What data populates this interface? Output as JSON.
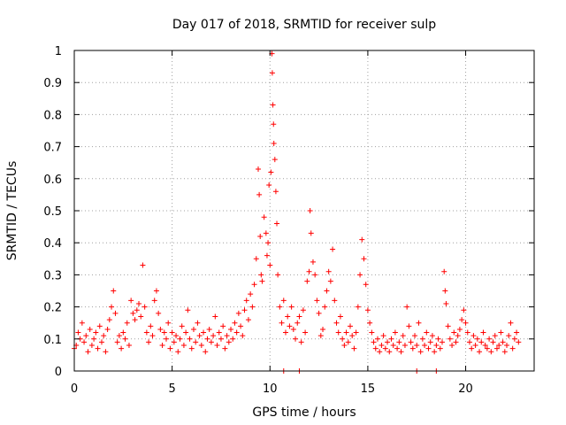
{
  "chart_data": {
    "type": "scatter",
    "title": "Day 017 of 2018, SRMTID for receiver sulp",
    "xlabel": "GPS time / hours",
    "ylabel": "SRMTID / TECUs",
    "xlim": [
      0,
      23.5
    ],
    "ylim": [
      0,
      1
    ],
    "xticks": [
      0,
      5,
      10,
      15,
      20
    ],
    "xtick_labels": [
      "0",
      "5",
      "10",
      "15",
      "20"
    ],
    "yticks": [
      0,
      0.1,
      0.2,
      0.3,
      0.4,
      0.5,
      0.6,
      0.7,
      0.8,
      0.9,
      1
    ],
    "ytick_labels": [
      "0",
      "0.1",
      "0.2",
      "0.3",
      "0.4",
      "0.5",
      "0.6",
      "0.7",
      "0.8",
      "0.9",
      "1"
    ],
    "grid": true,
    "marker": "+",
    "series": [
      {
        "name": "SRMTID",
        "color": "#ff0000",
        "points": [
          [
            0.0,
            0.07
          ],
          [
            0.1,
            0.08
          ],
          [
            0.2,
            0.12
          ],
          [
            0.3,
            0.1
          ],
          [
            0.4,
            0.15
          ],
          [
            0.5,
            0.09
          ],
          [
            0.6,
            0.11
          ],
          [
            0.7,
            0.06
          ],
          [
            0.8,
            0.13
          ],
          [
            0.9,
            0.08
          ],
          [
            1.0,
            0.1
          ],
          [
            1.1,
            0.12
          ],
          [
            1.2,
            0.07
          ],
          [
            1.3,
            0.14
          ],
          [
            1.4,
            0.09
          ],
          [
            1.5,
            0.11
          ],
          [
            1.6,
            0.06
          ],
          [
            1.7,
            0.13
          ],
          [
            1.8,
            0.16
          ],
          [
            1.9,
            0.2
          ],
          [
            2.0,
            0.25
          ],
          [
            2.1,
            0.18
          ],
          [
            2.2,
            0.09
          ],
          [
            2.3,
            0.11
          ],
          [
            2.4,
            0.07
          ],
          [
            2.5,
            0.12
          ],
          [
            2.6,
            0.1
          ],
          [
            2.7,
            0.15
          ],
          [
            2.8,
            0.08
          ],
          [
            2.9,
            0.22
          ],
          [
            3.0,
            0.18
          ],
          [
            3.1,
            0.16
          ],
          [
            3.2,
            0.19
          ],
          [
            3.3,
            0.21
          ],
          [
            3.4,
            0.17
          ],
          [
            3.5,
            0.33
          ],
          [
            3.6,
            0.2
          ],
          [
            3.7,
            0.12
          ],
          [
            3.8,
            0.09
          ],
          [
            3.9,
            0.14
          ],
          [
            4.0,
            0.11
          ],
          [
            4.1,
            0.22
          ],
          [
            4.2,
            0.25
          ],
          [
            4.3,
            0.18
          ],
          [
            4.4,
            0.13
          ],
          [
            4.5,
            0.08
          ],
          [
            4.6,
            0.12
          ],
          [
            4.7,
            0.1
          ],
          [
            4.8,
            0.15
          ],
          [
            4.9,
            0.07
          ],
          [
            5.0,
            0.12
          ],
          [
            5.1,
            0.09
          ],
          [
            5.2,
            0.11
          ],
          [
            5.3,
            0.06
          ],
          [
            5.4,
            0.1
          ],
          [
            5.5,
            0.14
          ],
          [
            5.6,
            0.08
          ],
          [
            5.7,
            0.12
          ],
          [
            5.8,
            0.19
          ],
          [
            5.9,
            0.1
          ],
          [
            6.0,
            0.07
          ],
          [
            6.1,
            0.13
          ],
          [
            6.2,
            0.09
          ],
          [
            6.3,
            0.15
          ],
          [
            6.4,
            0.11
          ],
          [
            6.5,
            0.08
          ],
          [
            6.6,
            0.12
          ],
          [
            6.7,
            0.06
          ],
          [
            6.8,
            0.1
          ],
          [
            6.9,
            0.13
          ],
          [
            7.0,
            0.09
          ],
          [
            7.1,
            0.11
          ],
          [
            7.2,
            0.17
          ],
          [
            7.3,
            0.08
          ],
          [
            7.4,
            0.12
          ],
          [
            7.5,
            0.1
          ],
          [
            7.6,
            0.14
          ],
          [
            7.7,
            0.07
          ],
          [
            7.8,
            0.11
          ],
          [
            7.9,
            0.09
          ],
          [
            8.0,
            0.13
          ],
          [
            8.1,
            0.1
          ],
          [
            8.2,
            0.15
          ],
          [
            8.3,
            0.12
          ],
          [
            8.4,
            0.18
          ],
          [
            8.5,
            0.14
          ],
          [
            8.6,
            0.11
          ],
          [
            8.7,
            0.19
          ],
          [
            8.8,
            0.22
          ],
          [
            8.9,
            0.16
          ],
          [
            9.0,
            0.24
          ],
          [
            9.1,
            0.2
          ],
          [
            9.2,
            0.27
          ],
          [
            9.3,
            0.35
          ],
          [
            9.4,
            0.63
          ],
          [
            9.45,
            0.55
          ],
          [
            9.5,
            0.42
          ],
          [
            9.55,
            0.3
          ],
          [
            9.6,
            0.28
          ],
          [
            9.7,
            0.48
          ],
          [
            9.8,
            0.43
          ],
          [
            9.85,
            0.36
          ],
          [
            9.9,
            0.4
          ],
          [
            9.95,
            0.58
          ],
          [
            10.0,
            0.33
          ],
          [
            10.05,
            0.62
          ],
          [
            10.1,
            0.99
          ],
          [
            10.12,
            0.93
          ],
          [
            10.15,
            0.83
          ],
          [
            10.18,
            0.77
          ],
          [
            10.2,
            0.71
          ],
          [
            10.25,
            0.66
          ],
          [
            10.3,
            0.56
          ],
          [
            10.35,
            0.46
          ],
          [
            10.4,
            0.3
          ],
          [
            10.5,
            0.2
          ],
          [
            10.6,
            0.15
          ],
          [
            10.7,
            0.22
          ],
          [
            10.8,
            0.12
          ],
          [
            10.9,
            0.17
          ],
          [
            11.0,
            0.14
          ],
          [
            11.1,
            0.2
          ],
          [
            11.2,
            0.13
          ],
          [
            11.3,
            0.1
          ],
          [
            11.4,
            0.15
          ],
          [
            11.5,
            0.17
          ],
          [
            11.6,
            0.09
          ],
          [
            11.7,
            0.19
          ],
          [
            11.8,
            0.12
          ],
          [
            11.9,
            0.28
          ],
          [
            12.0,
            0.31
          ],
          [
            12.05,
            0.5
          ],
          [
            12.1,
            0.43
          ],
          [
            12.2,
            0.34
          ],
          [
            12.3,
            0.3
          ],
          [
            12.4,
            0.22
          ],
          [
            12.5,
            0.18
          ],
          [
            12.6,
            0.11
          ],
          [
            12.7,
            0.13
          ],
          [
            12.8,
            0.2
          ],
          [
            12.9,
            0.25
          ],
          [
            13.0,
            0.31
          ],
          [
            13.1,
            0.28
          ],
          [
            13.2,
            0.38
          ],
          [
            13.3,
            0.22
          ],
          [
            13.4,
            0.15
          ],
          [
            13.5,
            0.12
          ],
          [
            13.6,
            0.17
          ],
          [
            13.7,
            0.1
          ],
          [
            13.8,
            0.08
          ],
          [
            13.9,
            0.12
          ],
          [
            14.0,
            0.09
          ],
          [
            14.1,
            0.14
          ],
          [
            14.2,
            0.11
          ],
          [
            14.3,
            0.07
          ],
          [
            14.4,
            0.12
          ],
          [
            14.5,
            0.2
          ],
          [
            14.6,
            0.3
          ],
          [
            14.7,
            0.41
          ],
          [
            14.8,
            0.35
          ],
          [
            14.9,
            0.27
          ],
          [
            15.0,
            0.19
          ],
          [
            15.1,
            0.15
          ],
          [
            15.2,
            0.12
          ],
          [
            15.3,
            0.09
          ],
          [
            15.4,
            0.07
          ],
          [
            15.5,
            0.1
          ],
          [
            15.6,
            0.06
          ],
          [
            15.7,
            0.08
          ],
          [
            15.8,
            0.11
          ],
          [
            15.9,
            0.07
          ],
          [
            16.0,
            0.09
          ],
          [
            16.1,
            0.06
          ],
          [
            16.2,
            0.1
          ],
          [
            16.3,
            0.08
          ],
          [
            16.4,
            0.12
          ],
          [
            16.5,
            0.07
          ],
          [
            16.6,
            0.09
          ],
          [
            16.7,
            0.06
          ],
          [
            16.8,
            0.11
          ],
          [
            16.9,
            0.08
          ],
          [
            17.0,
            0.2
          ],
          [
            17.1,
            0.14
          ],
          [
            17.2,
            0.09
          ],
          [
            17.3,
            0.07
          ],
          [
            17.4,
            0.11
          ],
          [
            17.5,
            0.08
          ],
          [
            17.6,
            0.15
          ],
          [
            17.7,
            0.06
          ],
          [
            17.8,
            0.1
          ],
          [
            17.9,
            0.08
          ],
          [
            18.0,
            0.12
          ],
          [
            18.1,
            0.07
          ],
          [
            18.2,
            0.09
          ],
          [
            18.3,
            0.11
          ],
          [
            18.4,
            0.06
          ],
          [
            18.5,
            0.08
          ],
          [
            18.6,
            0.1
          ],
          [
            18.7,
            0.07
          ],
          [
            18.8,
            0.09
          ],
          [
            18.9,
            0.31
          ],
          [
            18.95,
            0.25
          ],
          [
            19.0,
            0.21
          ],
          [
            19.1,
            0.14
          ],
          [
            19.2,
            0.1
          ],
          [
            19.3,
            0.08
          ],
          [
            19.4,
            0.12
          ],
          [
            19.5,
            0.09
          ],
          [
            19.6,
            0.11
          ],
          [
            19.7,
            0.13
          ],
          [
            19.8,
            0.16
          ],
          [
            19.9,
            0.19
          ],
          [
            20.0,
            0.15
          ],
          [
            20.1,
            0.12
          ],
          [
            20.2,
            0.09
          ],
          [
            20.3,
            0.07
          ],
          [
            20.4,
            0.11
          ],
          [
            20.5,
            0.08
          ],
          [
            20.6,
            0.1
          ],
          [
            20.7,
            0.06
          ],
          [
            20.8,
            0.09
          ],
          [
            20.9,
            0.12
          ],
          [
            21.0,
            0.08
          ],
          [
            21.1,
            0.07
          ],
          [
            21.2,
            0.1
          ],
          [
            21.3,
            0.06
          ],
          [
            21.4,
            0.09
          ],
          [
            21.5,
            0.11
          ],
          [
            21.6,
            0.07
          ],
          [
            21.7,
            0.08
          ],
          [
            21.8,
            0.12
          ],
          [
            21.9,
            0.09
          ],
          [
            22.0,
            0.06
          ],
          [
            22.1,
            0.08
          ],
          [
            22.2,
            0.11
          ],
          [
            22.3,
            0.15
          ],
          [
            22.4,
            0.07
          ],
          [
            22.5,
            0.1
          ],
          [
            22.6,
            0.12
          ],
          [
            22.7,
            0.09
          ],
          [
            10.7,
            0.0
          ],
          [
            11.5,
            0.0
          ],
          [
            17.5,
            0.0
          ],
          [
            18.5,
            0.0
          ]
        ]
      }
    ]
  }
}
